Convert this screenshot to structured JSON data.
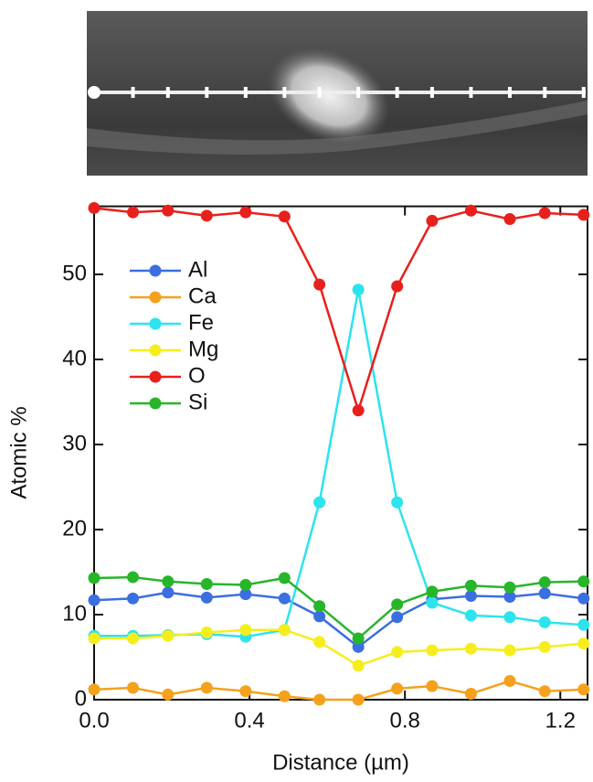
{
  "chart_data": {
    "type": "line",
    "x_label": "Distance (µm)",
    "y_label": "Atomic %",
    "x": [
      0,
      0.1,
      0.19,
      0.29,
      0.39,
      0.49,
      0.58,
      0.68,
      0.78,
      0.87,
      0.97,
      1.07,
      1.16,
      1.26
    ],
    "xlim": [
      0,
      1.27
    ],
    "ylim": [
      0,
      58
    ],
    "xticks": [
      {
        "value": 0,
        "label": "0.0"
      },
      0.4,
      0.8,
      1.2
    ],
    "yticks": [
      0,
      10,
      20,
      30,
      40,
      50
    ],
    "legend": "upper-left",
    "series": [
      {
        "name": "Al",
        "color": "#3b6fe0",
        "values": [
          11.7,
          11.9,
          12.6,
          12,
          12.4,
          11.9,
          9.8,
          6.2,
          9.7,
          11.8,
          12.2,
          12.1,
          12.5,
          11.9
        ]
      },
      {
        "name": "Ca",
        "color": "#f5a11c",
        "values": [
          1.2,
          1.4,
          0.6,
          1.4,
          1,
          0.4,
          0,
          0,
          1.3,
          1.6,
          0.7,
          2.2,
          1,
          1.2
        ]
      },
      {
        "name": "Fe",
        "color": "#2de3ee",
        "values": [
          7.5,
          7.5,
          7.6,
          7.7,
          7.4,
          8.2,
          23.2,
          48.2,
          23.2,
          11.4,
          9.9,
          9.7,
          9.1,
          8.8
        ]
      },
      {
        "name": "Mg",
        "color": "#f5ee1c",
        "values": [
          7.2,
          7.2,
          7.5,
          7.9,
          8.2,
          8.2,
          6.8,
          4,
          5.6,
          5.8,
          6,
          5.8,
          6.2,
          6.6
        ]
      },
      {
        "name": "O",
        "color": "#e8201c",
        "values": [
          57.8,
          57.3,
          57.5,
          56.9,
          57.3,
          56.8,
          48.8,
          34,
          48.6,
          56.3,
          57.5,
          56.5,
          57.2,
          57
        ]
      },
      {
        "name": "Si",
        "color": "#27b52a",
        "values": [
          14.3,
          14.4,
          13.9,
          13.6,
          13.5,
          14.3,
          11,
          7.2,
          11.2,
          12.7,
          13.4,
          13.2,
          13.8,
          13.9
        ]
      }
    ]
  }
}
